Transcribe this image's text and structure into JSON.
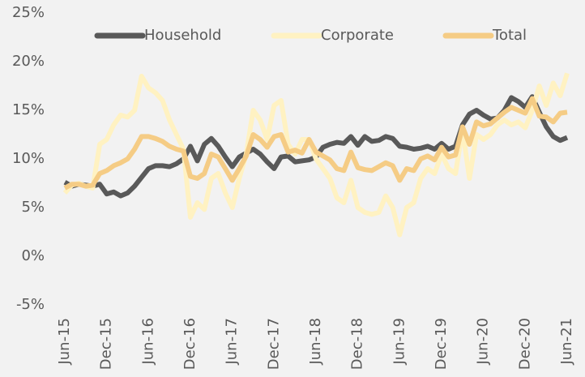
{
  "chart_data": {
    "type": "line",
    "categories": [
      "Jun-15",
      null,
      null,
      null,
      null,
      null,
      "Dec-15",
      null,
      null,
      null,
      null,
      null,
      "Jun-16",
      null,
      null,
      null,
      null,
      null,
      "Dec-16",
      null,
      null,
      null,
      null,
      null,
      "Jun-17",
      null,
      null,
      null,
      null,
      null,
      "Dec-17",
      null,
      null,
      null,
      null,
      null,
      "Jun-18",
      null,
      null,
      null,
      null,
      null,
      "Dec-18",
      null,
      null,
      null,
      null,
      null,
      "Jun-19",
      null,
      null,
      null,
      null,
      null,
      "Dec-19",
      null,
      null,
      null,
      null,
      null,
      "Jun-20",
      null,
      null,
      null,
      null,
      null,
      "Dec-20",
      null,
      null,
      null,
      null,
      null,
      "Jun-21"
    ],
    "series": [
      {
        "name": "Household",
        "color": "#595959",
        "values": [
          7.6,
          7.2,
          7.4,
          7.3,
          7.2,
          7.4,
          6.4,
          6.6,
          6.2,
          6.5,
          7.2,
          8.1,
          9.0,
          9.3,
          9.3,
          9.2,
          9.5,
          10.0,
          11.3,
          9.8,
          11.5,
          12.1,
          11.3,
          10.2,
          9.2,
          10.2,
          10.6,
          11.0,
          10.5,
          9.7,
          9.0,
          10.2,
          10.3,
          9.7,
          9.8,
          9.9,
          10.2,
          11.2,
          11.5,
          11.7,
          11.6,
          12.3,
          11.4,
          12.3,
          11.8,
          11.9,
          12.3,
          12.1,
          11.3,
          11.2,
          11.0,
          11.1,
          11.3,
          11.0,
          11.6,
          11.0,
          11.3,
          13.5,
          14.6,
          15.0,
          14.5,
          14.1,
          14.2,
          15.0,
          16.3,
          15.9,
          15.3,
          16.4,
          14.8,
          13.3,
          12.3,
          11.9,
          12.2
        ]
      },
      {
        "name": "Corporate",
        "color": "#fff2c2",
        "values": [
          6.5,
          7.3,
          7.5,
          7.2,
          7.0,
          11.5,
          12.0,
          13.5,
          14.5,
          14.3,
          15.0,
          18.5,
          17.3,
          16.8,
          16.0,
          14.0,
          12.5,
          11.0,
          4.0,
          5.5,
          4.8,
          8.0,
          8.5,
          6.5,
          5.0,
          8.0,
          10.5,
          15.0,
          14.0,
          12.0,
          15.5,
          16.0,
          11.5,
          10.5,
          12.0,
          12.0,
          10.0,
          9.0,
          8.0,
          6.0,
          5.5,
          7.8,
          5.0,
          4.5,
          4.3,
          4.5,
          6.2,
          5.0,
          2.2,
          5.0,
          5.5,
          8.0,
          9.0,
          8.5,
          10.5,
          9.0,
          8.5,
          13.0,
          8.0,
          12.5,
          12.0,
          12.5,
          13.5,
          14.0,
          13.5,
          13.8,
          13.2,
          15.0,
          17.5,
          15.5,
          17.8,
          16.5,
          18.8
        ]
      },
      {
        "name": "Total",
        "color": "#f5cc85",
        "values": [
          7.0,
          7.4,
          7.4,
          7.2,
          7.3,
          8.5,
          8.8,
          9.3,
          9.6,
          10.0,
          11.0,
          12.3,
          12.3,
          12.1,
          11.8,
          11.3,
          11.0,
          10.8,
          8.2,
          8.0,
          8.5,
          10.5,
          10.2,
          9.0,
          7.8,
          9.0,
          10.3,
          12.5,
          12.0,
          11.2,
          12.3,
          12.5,
          10.7,
          10.9,
          10.6,
          12.0,
          10.7,
          10.3,
          9.9,
          9.0,
          8.8,
          10.7,
          9.1,
          8.9,
          8.8,
          9.2,
          9.6,
          9.3,
          7.8,
          9.0,
          8.8,
          10.0,
          10.3,
          9.9,
          11.2,
          10.2,
          10.4,
          13.3,
          11.5,
          13.8,
          13.4,
          13.6,
          14.2,
          14.8,
          15.3,
          15.0,
          14.7,
          16.2,
          14.4,
          14.3,
          13.8,
          14.7,
          14.8
        ]
      }
    ],
    "ylim": [
      -5,
      25
    ],
    "yticks": [
      {
        "value": -5,
        "label": "-5%"
      },
      {
        "value": 0,
        "label": "0%"
      },
      {
        "value": 5,
        "label": "5%"
      },
      {
        "value": 10,
        "label": "10%"
      },
      {
        "value": 15,
        "label": "15%"
      },
      {
        "value": 20,
        "label": "20%"
      },
      {
        "value": 25,
        "label": "25%"
      }
    ],
    "grid": false,
    "legend": "top"
  }
}
